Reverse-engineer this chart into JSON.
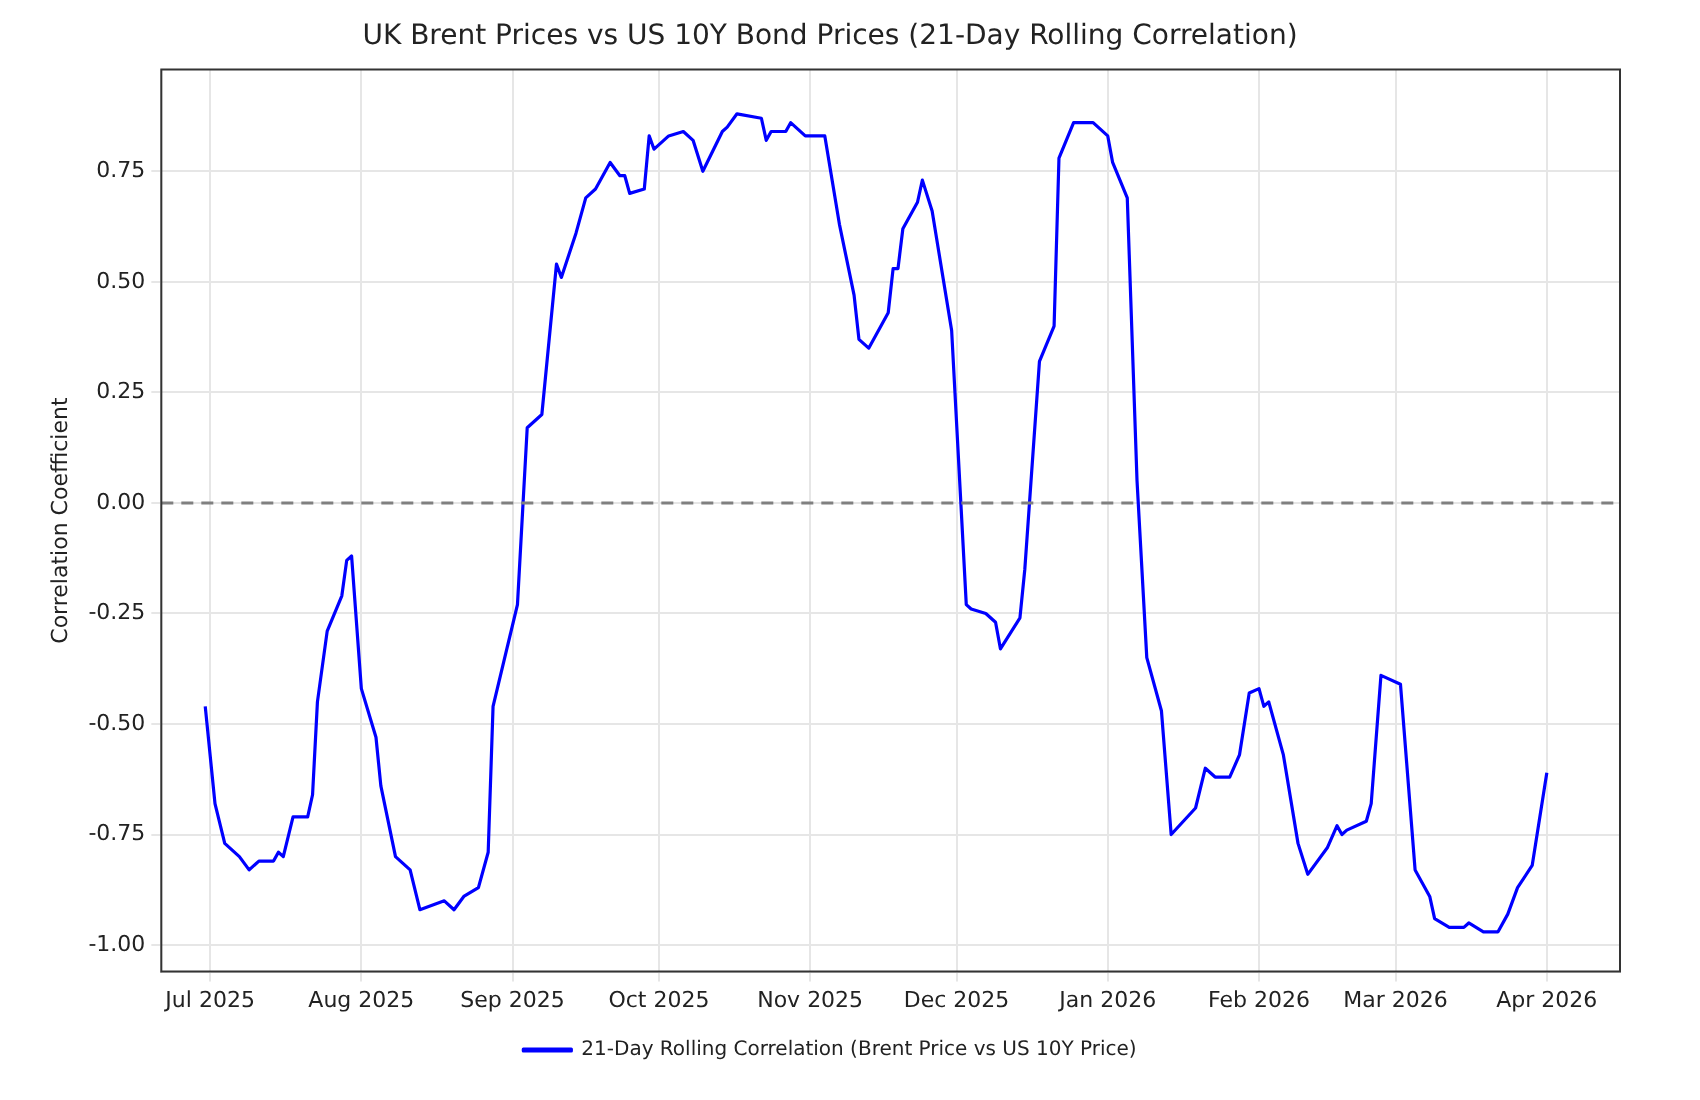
{
  "chart_data": {
    "type": "line",
    "title": "UK Brent Prices vs US 10Y Bond Prices (21-Day Rolling Correlation)",
    "ylabel": "Correlation Coefficient",
    "x": [
      "2025-06-30",
      "2025-07-02",
      "2025-07-04",
      "2025-07-07",
      "2025-07-09",
      "2025-07-11",
      "2025-07-14",
      "2025-07-15",
      "2025-07-16",
      "2025-07-18",
      "2025-07-21",
      "2025-07-22",
      "2025-07-23",
      "2025-07-25",
      "2025-07-28",
      "2025-07-29",
      "2025-07-30",
      "2025-08-01",
      "2025-08-04",
      "2025-08-05",
      "2025-08-08",
      "2025-08-11",
      "2025-08-13",
      "2025-08-18",
      "2025-08-20",
      "2025-08-22",
      "2025-08-25",
      "2025-08-27",
      "2025-08-28",
      "2025-09-02",
      "2025-09-04",
      "2025-09-07",
      "2025-09-10",
      "2025-09-11",
      "2025-09-14",
      "2025-09-16",
      "2025-09-18",
      "2025-09-21",
      "2025-09-23",
      "2025-09-24",
      "2025-09-25",
      "2025-09-28",
      "2025-09-29",
      "2025-09-30",
      "2025-10-03",
      "2025-10-06",
      "2025-10-08",
      "2025-10-10",
      "2025-10-14",
      "2025-10-15",
      "2025-10-17",
      "2025-10-22",
      "2025-10-23",
      "2025-10-24",
      "2025-10-27",
      "2025-10-28",
      "2025-10-31",
      "2025-11-04",
      "2025-11-07",
      "2025-11-10",
      "2025-11-11",
      "2025-11-13",
      "2025-11-17",
      "2025-11-18",
      "2025-11-19",
      "2025-11-20",
      "2025-11-23",
      "2025-11-24",
      "2025-11-26",
      "2025-11-30",
      "2025-12-03",
      "2025-12-04",
      "2025-12-07",
      "2025-12-09",
      "2025-12-10",
      "2025-12-14",
      "2025-12-15",
      "2025-12-18",
      "2025-12-21",
      "2025-12-22",
      "2025-12-25",
      "2025-12-29",
      "2026-01-01",
      "2026-01-02",
      "2026-01-05",
      "2026-01-07",
      "2026-01-09",
      "2026-01-12",
      "2026-01-14",
      "2026-01-19",
      "2026-01-21",
      "2026-01-23",
      "2026-01-26",
      "2026-01-28",
      "2026-01-30",
      "2026-02-01",
      "2026-02-02",
      "2026-02-03",
      "2026-02-06",
      "2026-02-09",
      "2026-02-11",
      "2026-02-15",
      "2026-02-17",
      "2026-02-18",
      "2026-02-19",
      "2026-02-23",
      "2026-02-24",
      "2026-02-26",
      "2026-03-02",
      "2026-03-05",
      "2026-03-08",
      "2026-03-09",
      "2026-03-12",
      "2026-03-15",
      "2026-03-16",
      "2026-03-19",
      "2026-03-22",
      "2026-03-24",
      "2026-03-26",
      "2026-03-29",
      "2026-04-01"
    ],
    "series": [
      {
        "name": "21-Day Rolling Correlation (Brent Price vs US 10Y Price)",
        "color": "#0000ff",
        "values": [
          -0.46,
          -0.68,
          -0.77,
          -0.8,
          -0.83,
          -0.81,
          -0.81,
          -0.79,
          -0.8,
          -0.71,
          -0.71,
          -0.66,
          -0.45,
          -0.29,
          -0.21,
          -0.13,
          -0.12,
          -0.42,
          -0.53,
          -0.64,
          -0.8,
          -0.83,
          -0.92,
          -0.9,
          -0.92,
          -0.89,
          -0.87,
          -0.79,
          -0.46,
          -0.23,
          0.17,
          0.2,
          0.54,
          0.51,
          0.61,
          0.69,
          0.71,
          0.77,
          0.74,
          0.74,
          0.7,
          0.71,
          0.83,
          0.8,
          0.83,
          0.84,
          0.82,
          0.75,
          0.84,
          0.85,
          0.88,
          0.87,
          0.82,
          0.84,
          0.84,
          0.86,
          0.83,
          0.83,
          0.63,
          0.47,
          0.37,
          0.35,
          0.43,
          0.53,
          0.53,
          0.62,
          0.68,
          0.73,
          0.66,
          0.39,
          -0.23,
          -0.24,
          -0.25,
          -0.27,
          -0.33,
          -0.26,
          -0.15,
          0.32,
          0.4,
          0.78,
          0.86,
          0.86,
          0.83,
          0.77,
          0.69,
          0.05,
          -0.35,
          -0.47,
          -0.75,
          -0.69,
          -0.6,
          -0.62,
          -0.62,
          -0.57,
          -0.43,
          -0.42,
          -0.46,
          -0.45,
          -0.57,
          -0.77,
          -0.84,
          -0.78,
          -0.73,
          -0.75,
          -0.74,
          -0.72,
          -0.68,
          -0.39,
          -0.41,
          -0.83,
          -0.89,
          -0.94,
          -0.96,
          -0.96,
          -0.95,
          -0.97,
          -0.97,
          -0.93,
          -0.87,
          -0.82,
          -0.61
        ]
      }
    ],
    "xlim": [
      "2025-06-21",
      "2026-04-16"
    ],
    "xticks": [
      {
        "value": "2025-07-01",
        "label": "Jul 2025"
      },
      {
        "value": "2025-08-01",
        "label": "Aug 2025"
      },
      {
        "value": "2025-09-01",
        "label": "Sep 2025"
      },
      {
        "value": "2025-10-01",
        "label": "Oct 2025"
      },
      {
        "value": "2025-11-01",
        "label": "Nov 2025"
      },
      {
        "value": "2025-12-01",
        "label": "Dec 2025"
      },
      {
        "value": "2026-01-01",
        "label": "Jan 2026"
      },
      {
        "value": "2026-02-01",
        "label": "Feb 2026"
      },
      {
        "value": "2026-03-01",
        "label": "Mar 2026"
      },
      {
        "value": "2026-04-01",
        "label": "Apr 2026"
      }
    ],
    "ylim": [
      -1.06,
      0.98
    ],
    "yticks": [
      {
        "value": -1,
        "label": "-1.00"
      },
      {
        "value": -0.75,
        "label": "-0.75"
      },
      {
        "value": -0.5,
        "label": "-0.50"
      },
      {
        "value": -0.25,
        "label": "-0.25"
      },
      {
        "value": 0,
        "label": "0.00"
      },
      {
        "value": 0.25,
        "label": "0.25"
      },
      {
        "value": 0.5,
        "label": "0.50"
      },
      {
        "value": 0.75,
        "label": "0.75"
      }
    ],
    "ref_lines": [
      {
        "axis": "y",
        "value": 0,
        "color": "#808080",
        "line_style": "dashed"
      }
    ],
    "grid": true,
    "legend": "bottom",
    "line_style": "solid"
  }
}
